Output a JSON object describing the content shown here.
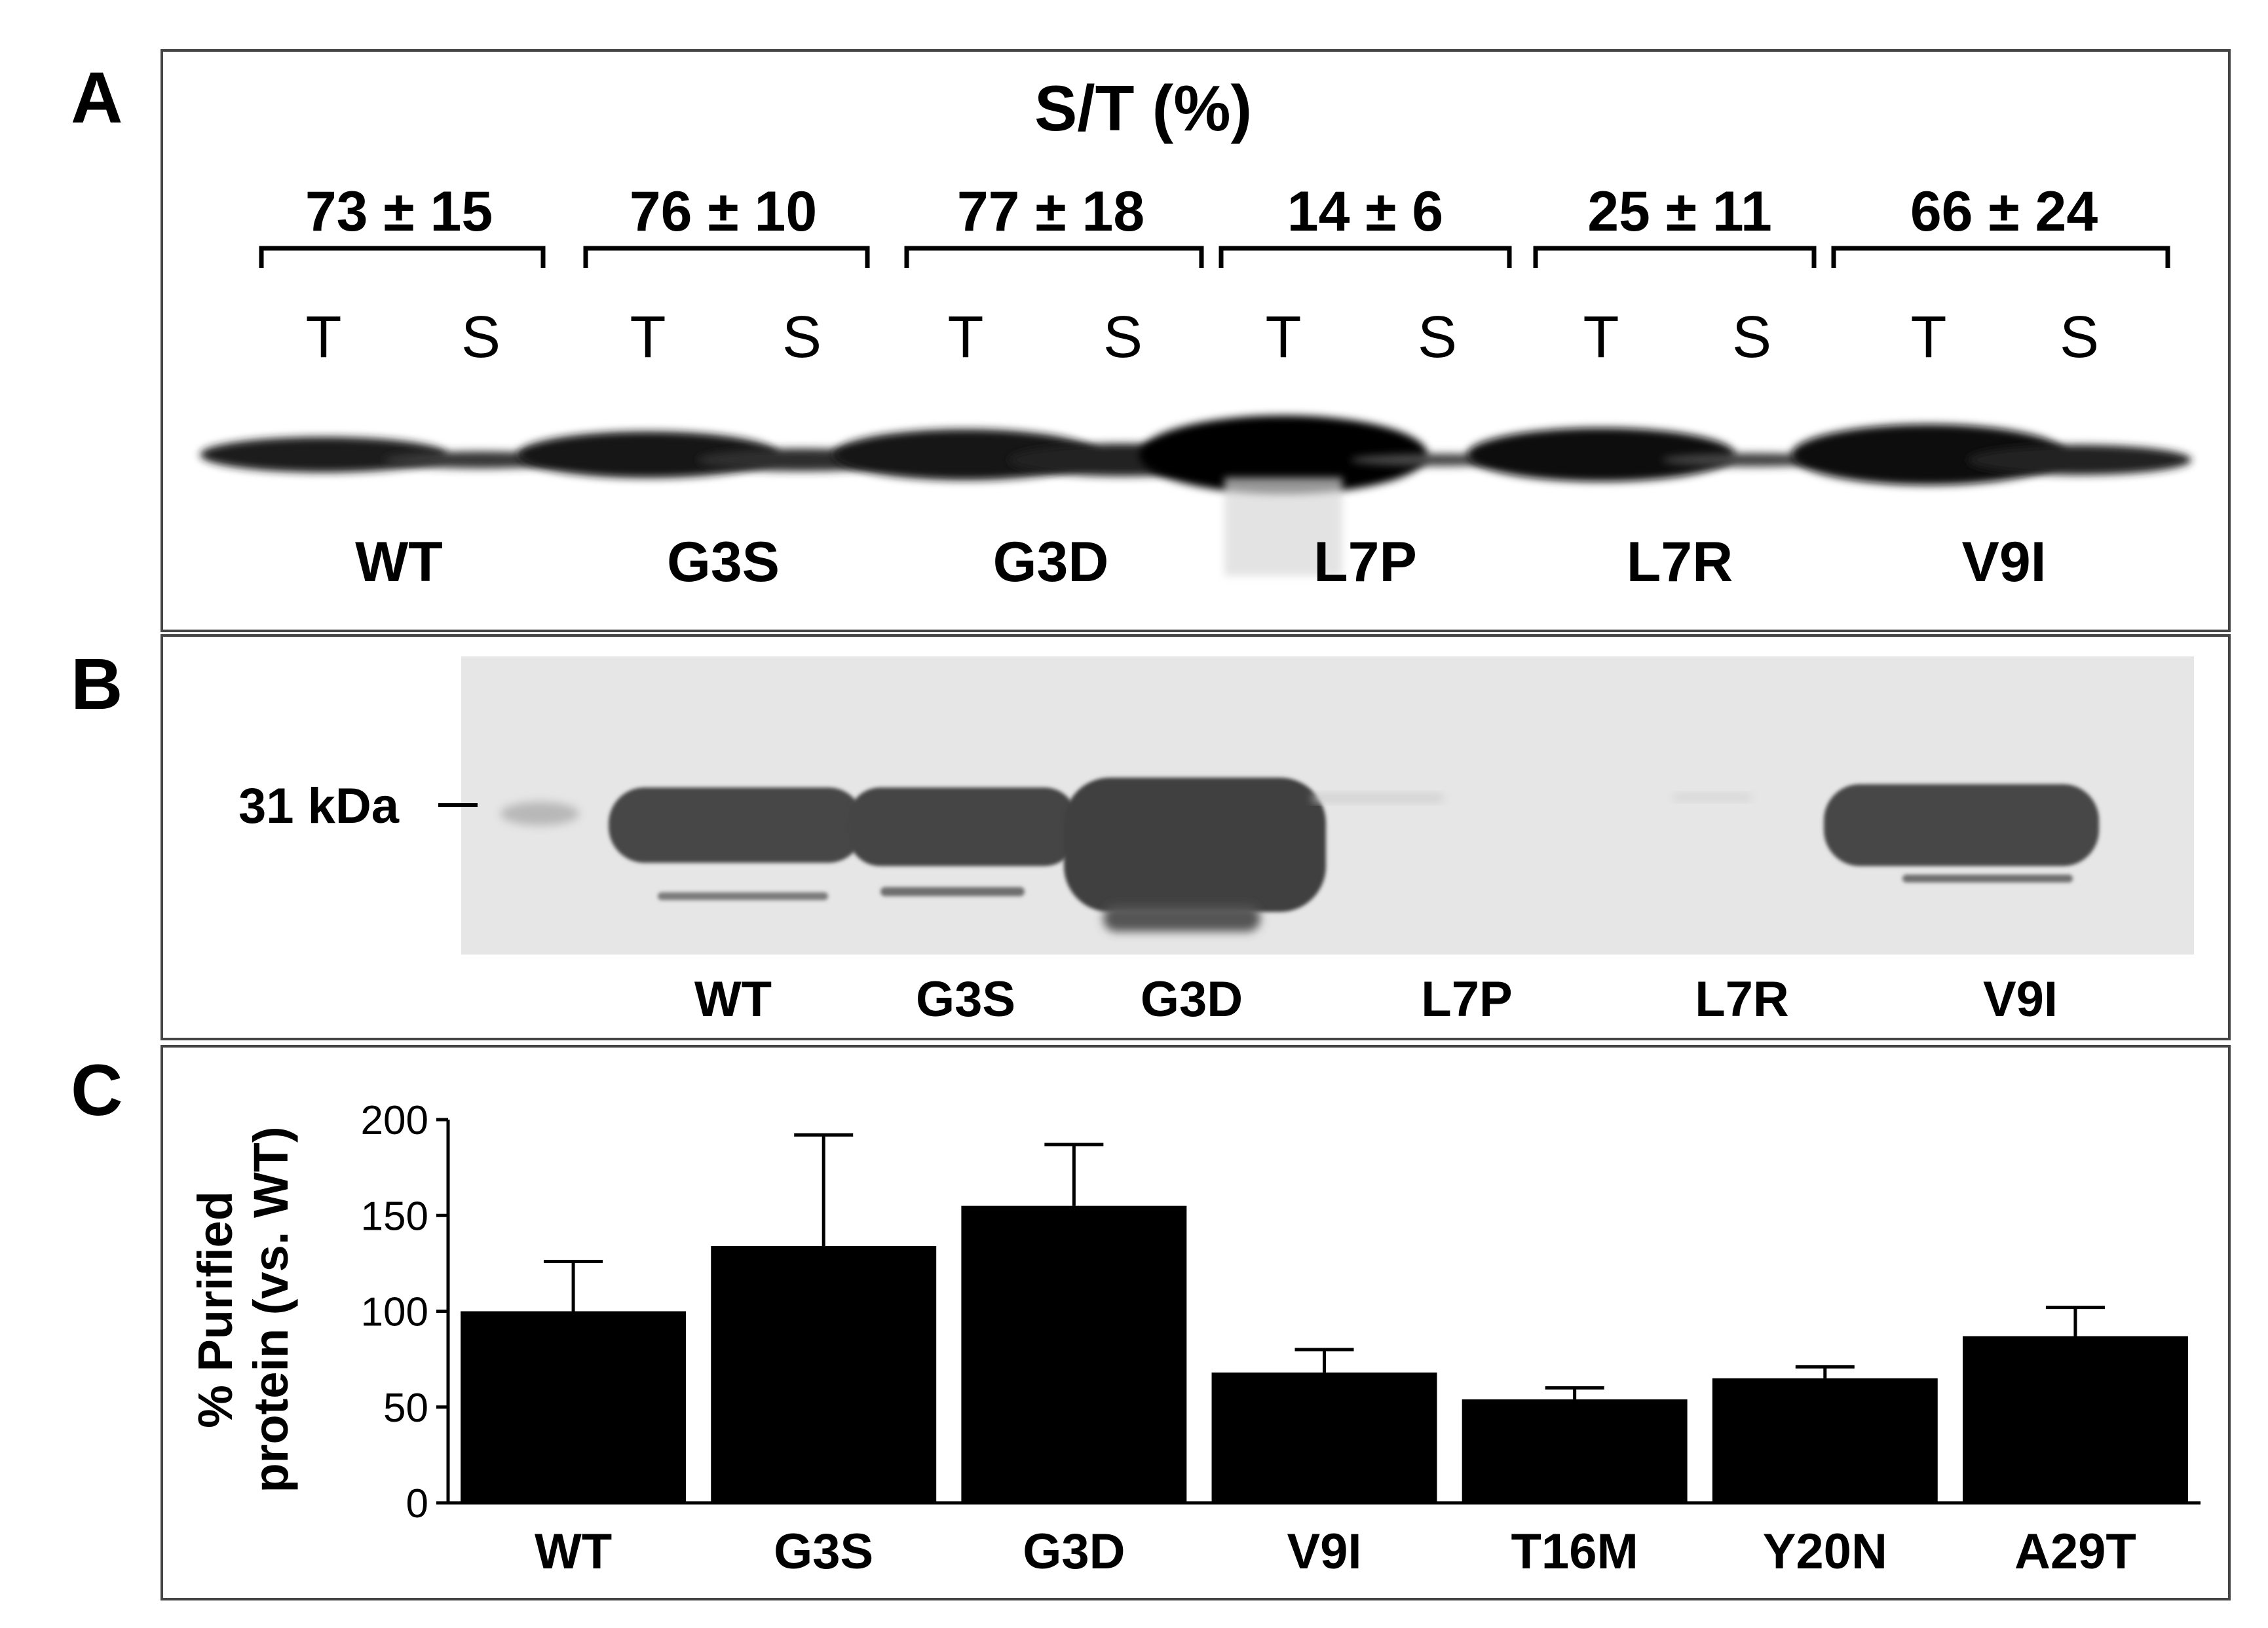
{
  "panel_letters": {
    "a": "A",
    "b": "B",
    "c": "C"
  },
  "panel_a": {
    "title": "S/T (%)",
    "groups": [
      {
        "value": "73 ± 15",
        "t": "T",
        "s": "S",
        "label": "WT",
        "t_intensity": 0.55,
        "s_intensity": 0.42
      },
      {
        "value": "76 ± 10",
        "t": "T",
        "s": "S",
        "label": "G3S",
        "t_intensity": 0.7,
        "s_intensity": 0.55
      },
      {
        "value": "77 ± 18",
        "t": "T",
        "s": "S",
        "label": "G3D",
        "t_intensity": 0.75,
        "s_intensity": 0.72
      },
      {
        "value": "14 ± 6",
        "t": "T",
        "s": "S",
        "label": "L7P",
        "t_intensity": 1.0,
        "s_intensity": 0.25
      },
      {
        "value": "25 ± 11",
        "t": "T",
        "s": "S",
        "label": "L7R",
        "t_intensity": 0.78,
        "s_intensity": 0.3
      },
      {
        "value": "66 ± 24",
        "t": "T",
        "s": "S",
        "label": "V9I",
        "t_intensity": 0.85,
        "s_intensity": 0.68
      }
    ]
  },
  "panel_b": {
    "marker": "31 kDa",
    "lanes": [
      "WT",
      "G3S",
      "G3D",
      "L7P",
      "L7R",
      "V9I"
    ]
  },
  "chart_data": {
    "type": "bar",
    "categories": [
      "WT",
      "G3S",
      "G3D",
      "V9I",
      "T16M",
      "Y20N",
      "A29T"
    ],
    "values": [
      100,
      134,
      155,
      68,
      54,
      65,
      87
    ],
    "errors": [
      26,
      58,
      32,
      12,
      6,
      6,
      15
    ],
    "ylabel": "% Purified protein (vs. WT)",
    "ylabel_line1": "% Purified",
    "ylabel_line2": "protein (vs. WT)",
    "ylim": [
      0,
      200
    ],
    "yticks": [
      0,
      50,
      100,
      150,
      200
    ],
    "bar_color": "#000000",
    "grid": false
  }
}
